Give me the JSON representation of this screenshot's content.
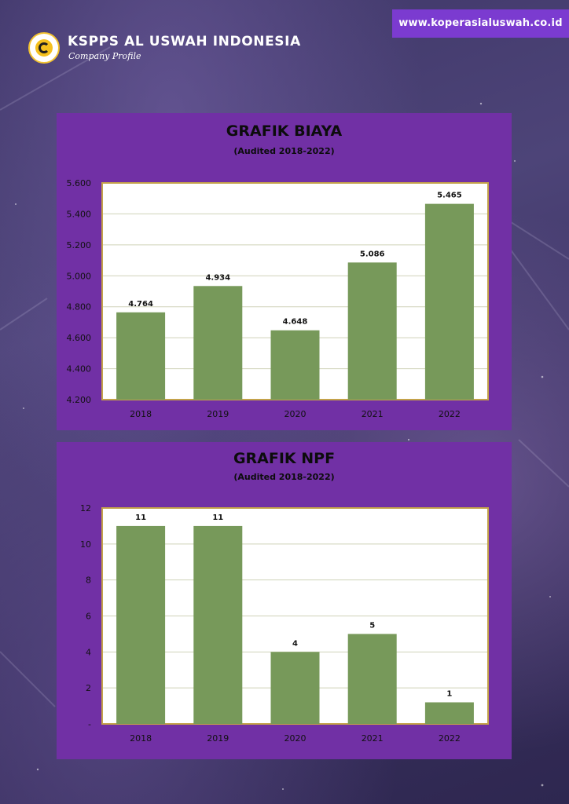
{
  "header": {
    "org_name": "KSPPS AL USWAH INDONESIA",
    "subtitle": "Company Profile",
    "url": "www.koperasialuswah.co.id"
  },
  "colors": {
    "panel": "#7130a5",
    "bar": "#77995a",
    "plot_bg": "#ffffff",
    "plot_border": "#c4a24a",
    "grid": "#cfd2b8",
    "url_badge": "#7b3bd0"
  },
  "chart_data": [
    {
      "type": "bar",
      "title": "GRAFIK BIAYA",
      "subtitle": "(Audited 2018-2022)",
      "categories": [
        "2018",
        "2019",
        "2020",
        "2021",
        "2022"
      ],
      "values": [
        4764,
        4934,
        4648,
        5086,
        5465
      ],
      "data_labels": [
        "4.764",
        "4.934",
        "4.648",
        "5.086",
        "5.465"
      ],
      "ylim": [
        4200,
        5600
      ],
      "y_ticks": [
        4200,
        4400,
        4600,
        4800,
        5000,
        5200,
        5400,
        5600
      ],
      "y_tick_labels": [
        "4.200",
        "4.400",
        "4.600",
        "4.800",
        "5.000",
        "5.200",
        "5.400",
        "5.600"
      ],
      "xlabel": "",
      "ylabel": "",
      "grid": true,
      "legend": "none"
    },
    {
      "type": "bar",
      "title": "GRAFIK NPF",
      "subtitle": "(Audited 2018-2022)",
      "categories": [
        "2018",
        "2019",
        "2020",
        "2021",
        "2022"
      ],
      "values": [
        11,
        11,
        4,
        5,
        1.2
      ],
      "data_labels": [
        "11",
        "11",
        "4",
        "5",
        "1"
      ],
      "ylim": [
        0,
        12
      ],
      "y_ticks": [
        0,
        2,
        4,
        6,
        8,
        10,
        12
      ],
      "y_tick_labels": [
        "-",
        "2",
        "4",
        "6",
        "8",
        "10",
        "12"
      ],
      "xlabel": "",
      "ylabel": "",
      "grid": true,
      "legend": "none"
    }
  ]
}
